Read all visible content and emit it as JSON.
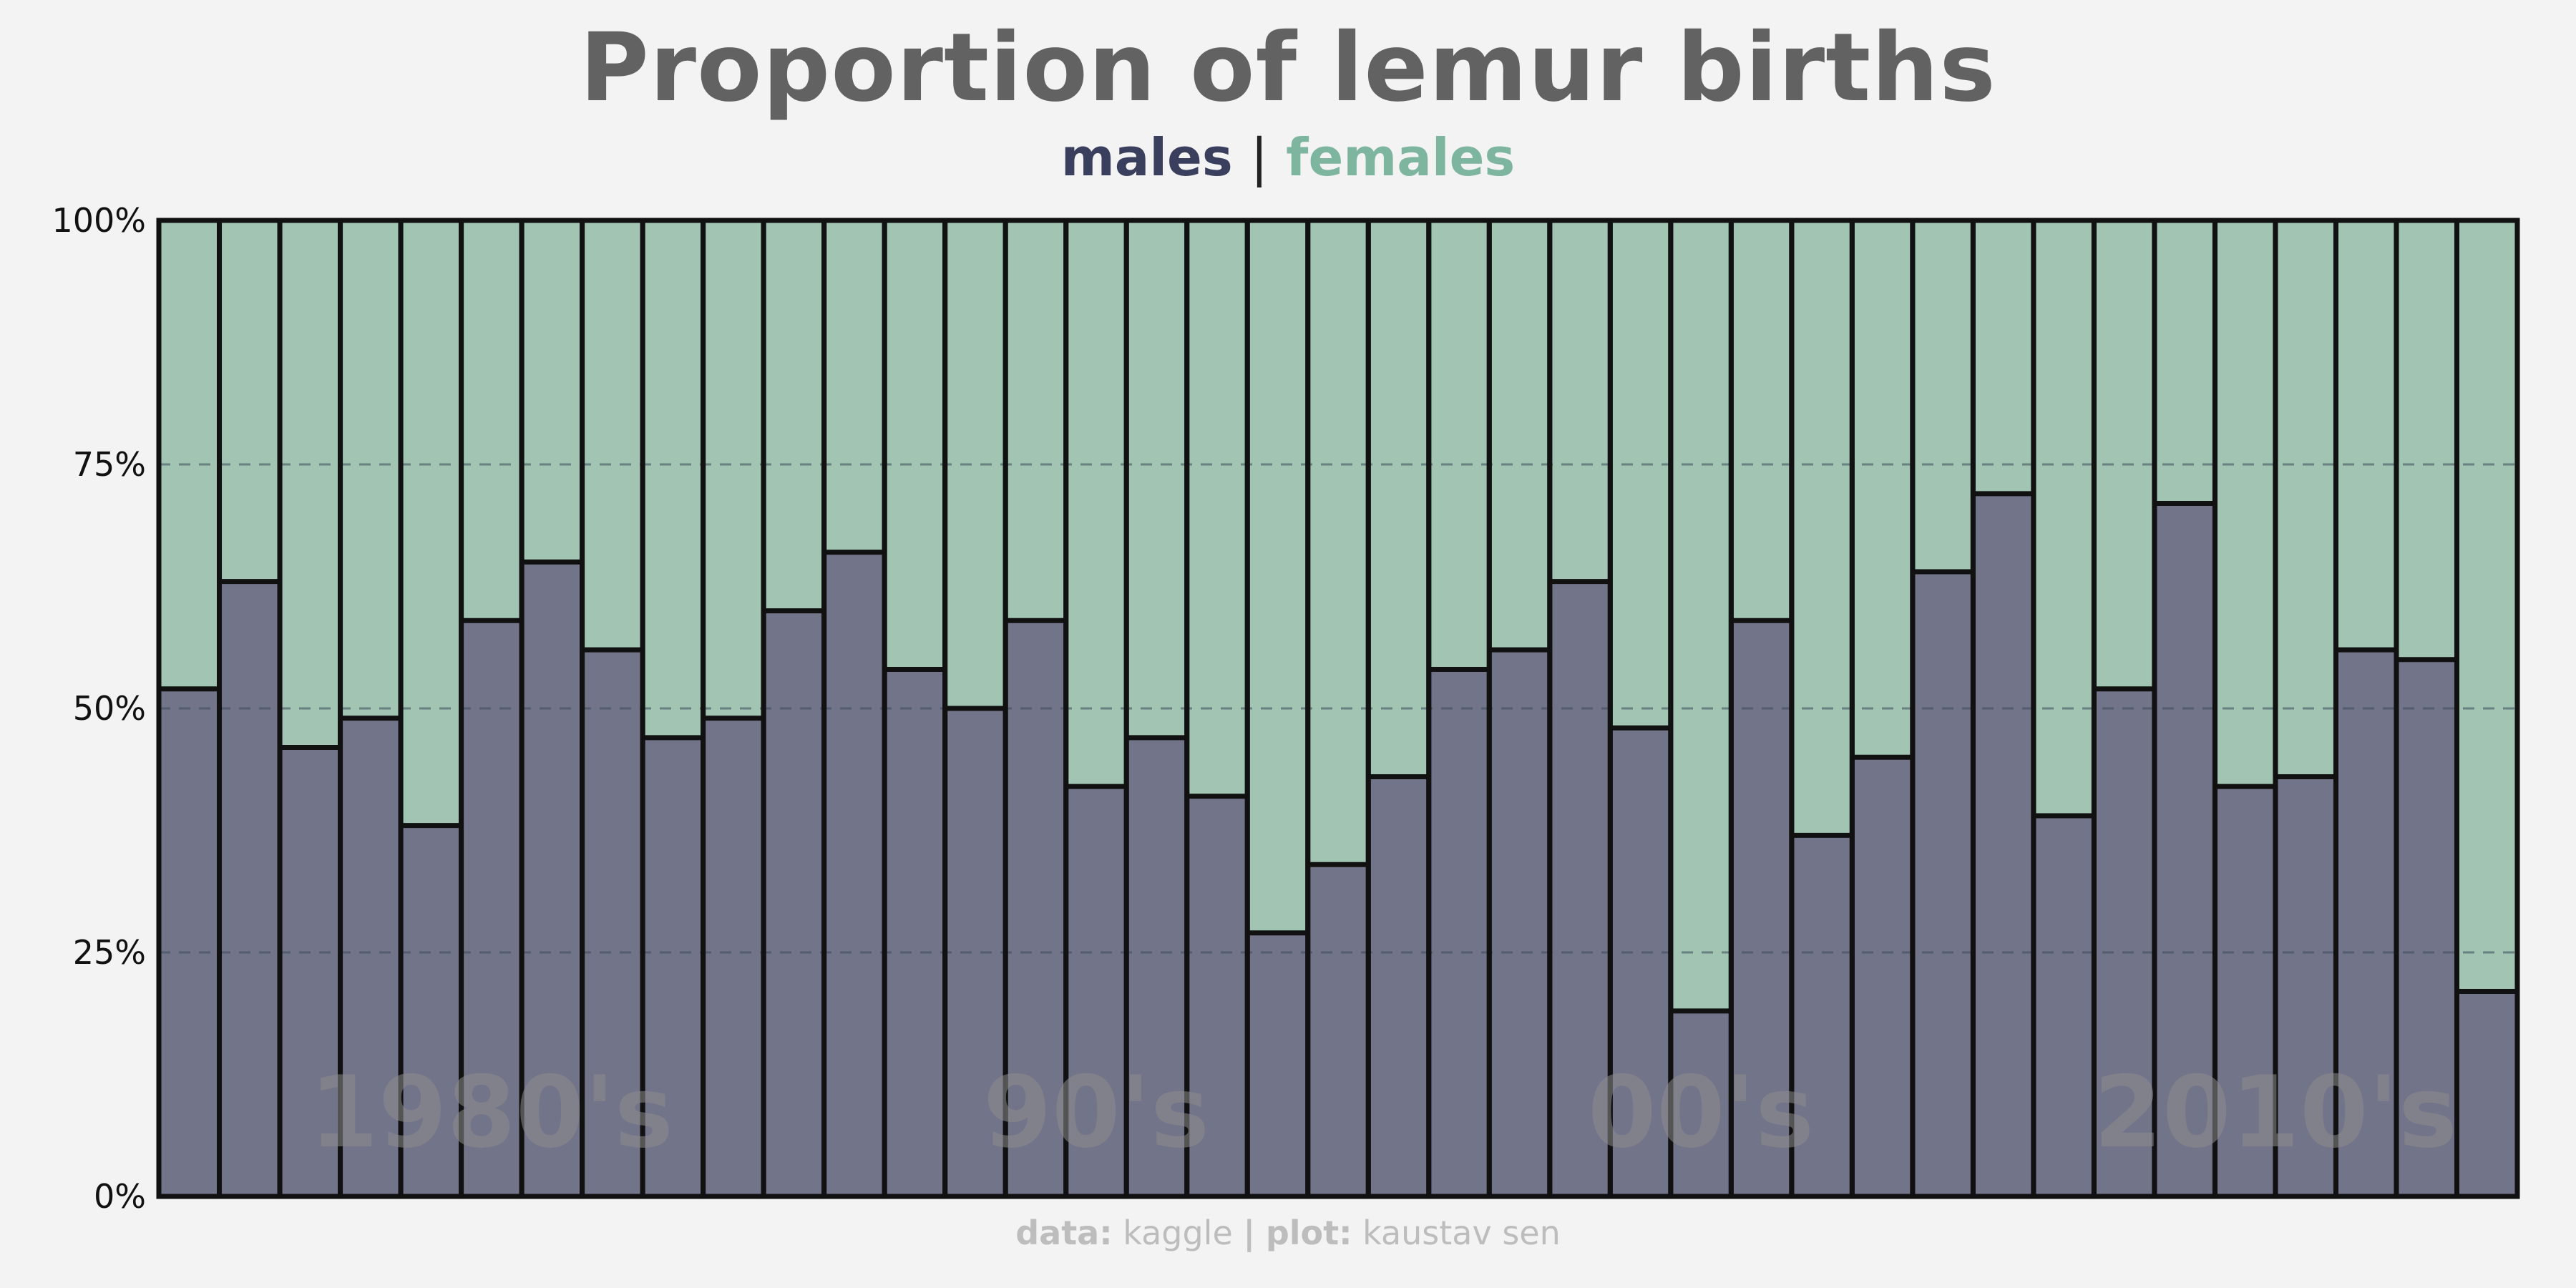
{
  "chart_data": {
    "type": "bar",
    "stacked": true,
    "normalized": true,
    "title": "Proportion of lemur births",
    "subtitle": {
      "males": "males",
      "separator": "|",
      "females": "females"
    },
    "ylim": [
      0,
      1
    ],
    "yticks": [
      0,
      0.25,
      0.5,
      0.75,
      1
    ],
    "ytick_labels": [
      "0%",
      "25%",
      "50%",
      "75%",
      "100%"
    ],
    "grid": "horizontal dashed",
    "colors": {
      "males": "#72748a",
      "females": "#a1c4b3",
      "males_title": "#3b3f5e",
      "females_title": "#7db59e",
      "outline": "#111111"
    },
    "series": [
      {
        "name": "males",
        "values": [
          0.52,
          0.63,
          0.46,
          0.49,
          0.38,
          0.59,
          0.65,
          0.56,
          0.47,
          0.49,
          0.6,
          0.66,
          0.54,
          0.5,
          0.59,
          0.42,
          0.47,
          0.41,
          0.27,
          0.34,
          0.43,
          0.54,
          0.56,
          0.63,
          0.48,
          0.19,
          0.59,
          0.37,
          0.45,
          0.64,
          0.72,
          0.39,
          0.52,
          0.71,
          0.42,
          0.43,
          0.56,
          0.55,
          0.21
        ]
      },
      {
        "name": "females",
        "values": [
          0.48,
          0.37,
          0.54,
          0.51,
          0.62,
          0.41,
          0.35,
          0.44,
          0.53,
          0.51,
          0.4,
          0.34,
          0.46,
          0.5,
          0.41,
          0.58,
          0.53,
          0.59,
          0.73,
          0.66,
          0.57,
          0.46,
          0.44,
          0.37,
          0.52,
          0.81,
          0.41,
          0.63,
          0.55,
          0.36,
          0.28,
          0.61,
          0.48,
          0.29,
          0.58,
          0.57,
          0.44,
          0.45,
          0.79
        ]
      }
    ],
    "annotations": [
      {
        "text": "1980's",
        "bar_center": 5.5
      },
      {
        "text": "90's",
        "bar_center": 15.5
      },
      {
        "text": "00's",
        "bar_center": 25.5
      },
      {
        "text": "2010's",
        "bar_center": 35
      }
    ]
  },
  "caption": {
    "data_label": "data:",
    "data_value": "kaggle",
    "separator": "|",
    "plot_label": "plot:",
    "plot_value": "kaustav sen"
  }
}
